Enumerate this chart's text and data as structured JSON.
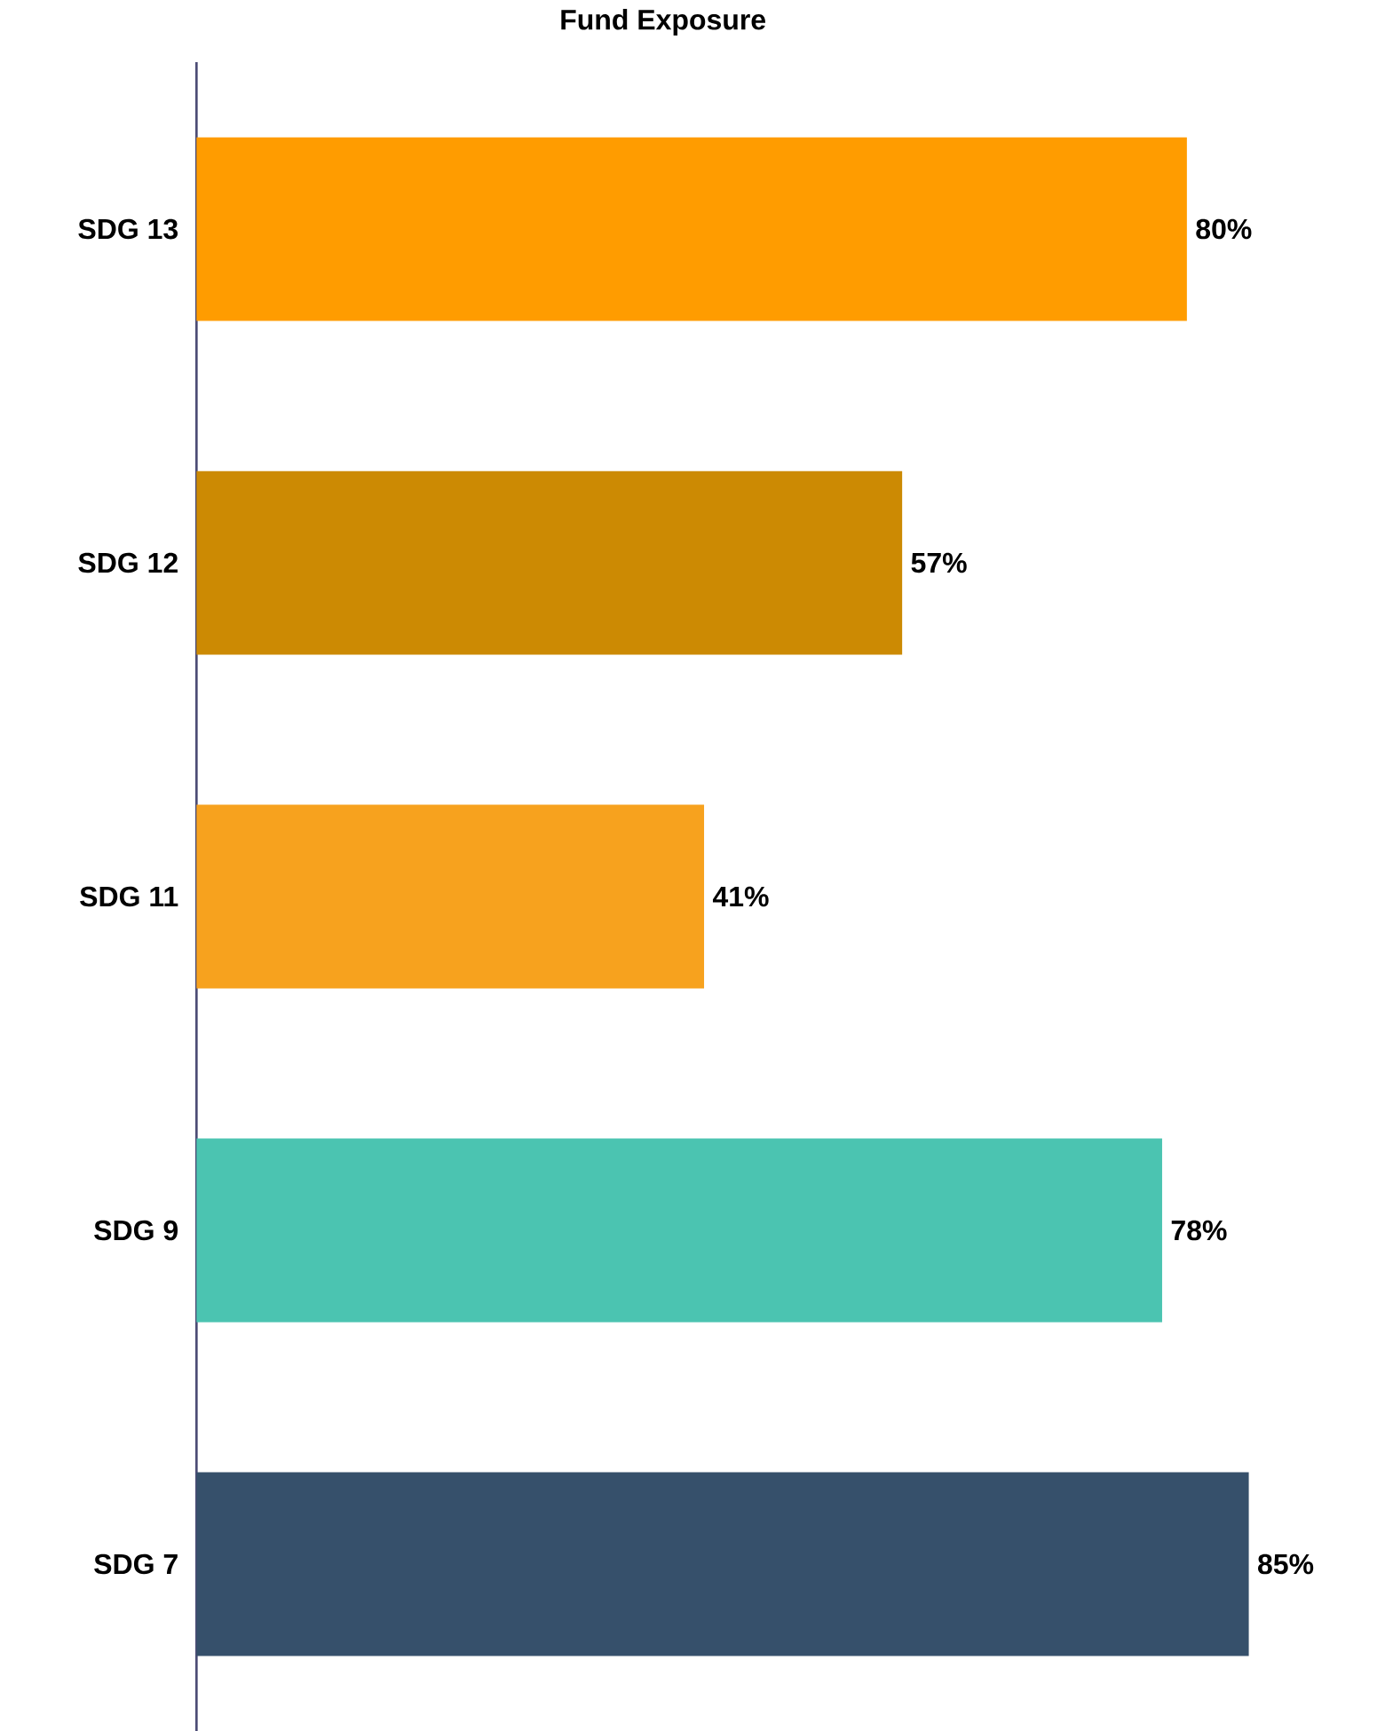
{
  "chart_data": {
    "type": "bar",
    "orientation": "horizontal",
    "title": "Fund Exposure",
    "categories": [
      "SDG 13",
      "SDG 12",
      "SDG 11",
      "SDG 9",
      "SDG 7"
    ],
    "values": [
      80,
      57,
      41,
      78,
      85
    ],
    "value_labels": [
      "80%",
      "57%",
      "41%",
      "78%",
      "85%"
    ],
    "colors": [
      "#ff9c00",
      "#cc8a03",
      "#f7a21e",
      "#4bc4b1",
      "#36506b"
    ]
  }
}
